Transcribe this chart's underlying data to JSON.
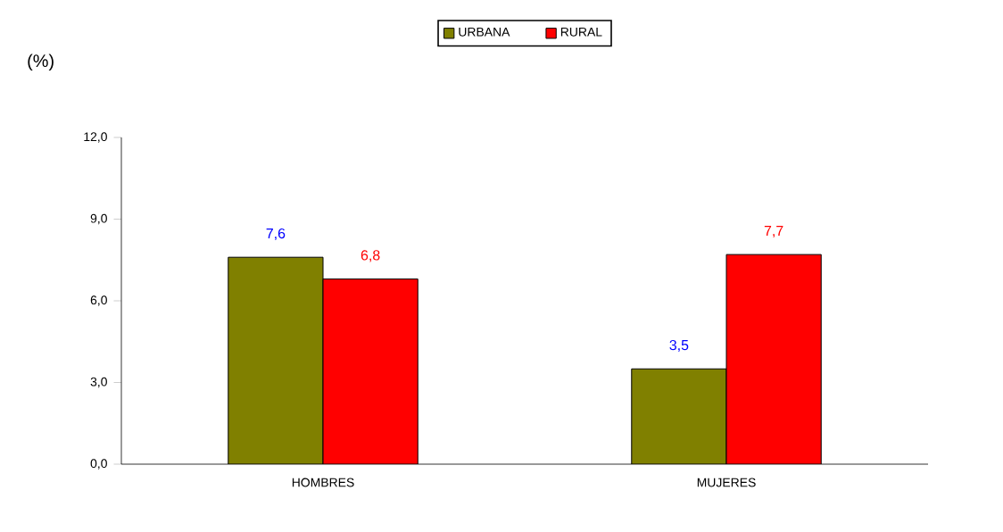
{
  "chart_data": {
    "type": "bar",
    "ylabel": "(%)",
    "categories": [
      "HOMBRES",
      "MUJERES"
    ],
    "series": [
      {
        "name": "URBANA",
        "color": "#808000",
        "values": [
          7.6,
          3.5
        ],
        "value_labels": [
          "7,6",
          "3,5"
        ]
      },
      {
        "name": "RURAL",
        "color": "#ff0000",
        "values": [
          6.8,
          7.7
        ],
        "value_labels": [
          "6,8",
          "7,7"
        ]
      }
    ],
    "ylim": [
      0,
      12
    ],
    "yticks": [
      {
        "value": 0,
        "label": "0,0"
      },
      {
        "value": 3,
        "label": "3,0"
      },
      {
        "value": 6,
        "label": "6,0"
      },
      {
        "value": 9,
        "label": "9,0"
      },
      {
        "value": 12,
        "label": "12,0"
      }
    ],
    "legend": "top",
    "grid": false
  }
}
